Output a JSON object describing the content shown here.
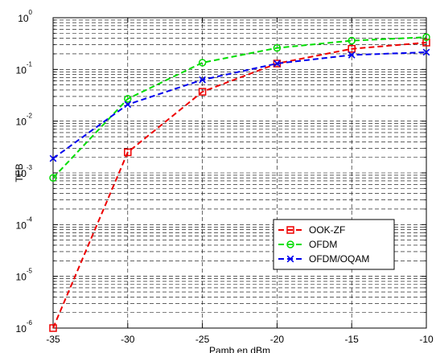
{
  "chart_data": {
    "type": "line",
    "title": "",
    "xlabel": "Pamb en dBm",
    "ylabel": "TEB",
    "xscale": "linear",
    "yscale": "log",
    "xlim": [
      -35,
      -10
    ],
    "ylim": [
      1e-06,
      1
    ],
    "x_ticks": [
      -35,
      -30,
      -25,
      -20,
      -15,
      -10
    ],
    "x_tick_labels": [
      "-35",
      "-30",
      "-25",
      "-20",
      "-15",
      "-10"
    ],
    "y_ticks": [
      {
        "value": 1e-06,
        "base": "10",
        "exp": "-6"
      },
      {
        "value": 1e-05,
        "base": "10",
        "exp": "-5"
      },
      {
        "value": 0.0001,
        "base": "10",
        "exp": "-4"
      },
      {
        "value": 0.001,
        "base": "10",
        "exp": "-3"
      },
      {
        "value": 0.01,
        "base": "10",
        "exp": "-2"
      },
      {
        "value": 0.1,
        "base": "10",
        "exp": "-1"
      },
      {
        "value": 1,
        "base": "10",
        "exp": "0"
      }
    ],
    "grid": true,
    "legend_position": "bottom-right",
    "x": [
      -35,
      -30,
      -25,
      -20,
      -15,
      -10
    ],
    "series": [
      {
        "name": "OOK-ZF",
        "color": "#ee0000",
        "marker": "square",
        "dash": "dashed",
        "values": [
          1e-06,
          0.0025,
          0.037,
          0.13,
          0.25,
          0.33
        ]
      },
      {
        "name": "OFDM",
        "color": "#00dd00",
        "marker": "circle",
        "dash": "dashed",
        "values": [
          0.0008,
          0.027,
          0.135,
          0.26,
          0.36,
          0.42
        ]
      },
      {
        "name": "OFDM/OQAM",
        "color": "#0000ee",
        "marker": "x",
        "dash": "dashed",
        "values": [
          0.0019,
          0.021,
          0.063,
          0.13,
          0.19,
          0.215
        ]
      }
    ]
  }
}
